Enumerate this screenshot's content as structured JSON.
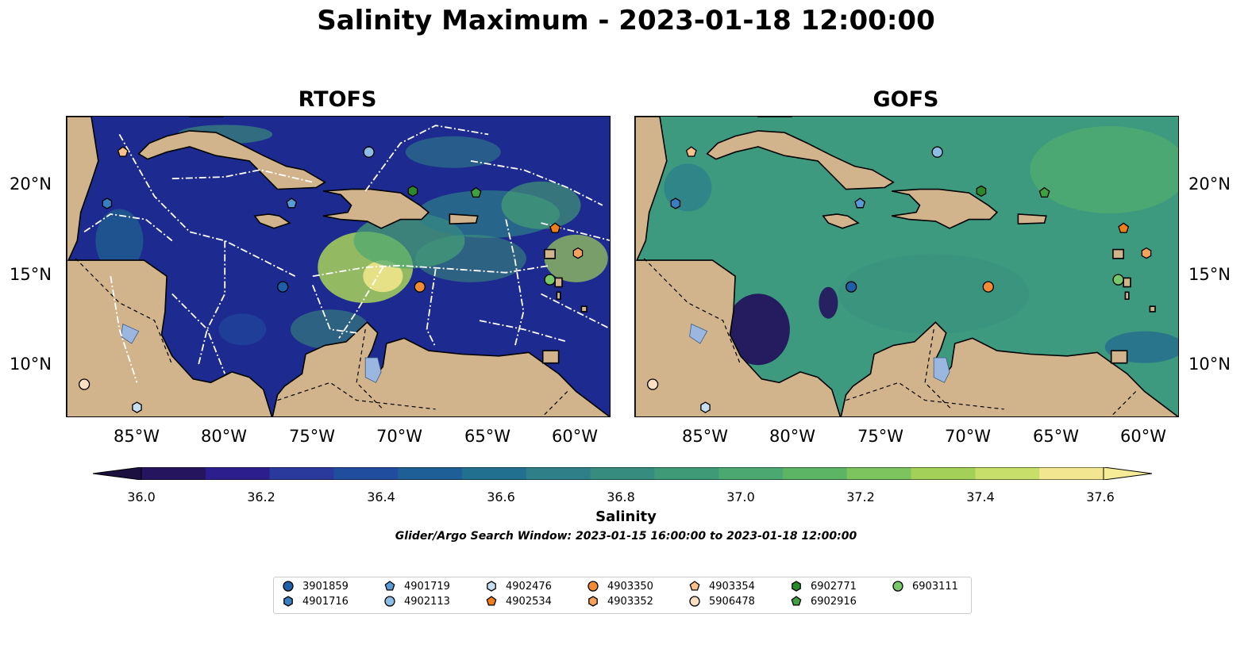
{
  "title": "Salinity Maximum - 2023-01-18 12:00:00",
  "panels": [
    {
      "title": "RTOFS",
      "id": "rtofs"
    },
    {
      "title": "GOFS",
      "id": "gofs"
    }
  ],
  "axes": {
    "x_ticks": [
      "85°W",
      "80°W",
      "75°W",
      "70°W",
      "65°W",
      "60°W"
    ],
    "y_ticks": [
      "20°N",
      "15°N",
      "10°N"
    ],
    "lon_range": [
      -89,
      -58
    ],
    "lat_range": [
      7,
      24
    ]
  },
  "colorbar": {
    "label": "Salinity",
    "ticks": [
      "36.0",
      "36.2",
      "36.4",
      "36.6",
      "36.8",
      "37.0",
      "37.2",
      "37.4",
      "37.6"
    ],
    "colors": [
      "#24155e",
      "#2c1e8c",
      "#2a3a9c",
      "#214d9e",
      "#1d5f96",
      "#22708f",
      "#2e7f88",
      "#378c80",
      "#3f9a78",
      "#4aa870",
      "#5cb565",
      "#7dc35e",
      "#a3d058",
      "#c8de6a",
      "#f2e690"
    ]
  },
  "search_window": "Glider/Argo Search Window: 2023-01-15 16:00:00 to 2023-01-18 12:00:00",
  "colors": {
    "land": "#d2b48c",
    "rtofs_ocean": "#1d2a8f",
    "gofs_ocean": "#3d9a7e",
    "lake": "#9bb7e0"
  },
  "floats": [
    {
      "id": "3901859",
      "marker": "circle",
      "color": "#1f5fa8",
      "lon": -76.7,
      "lat": 14.4
    },
    {
      "id": "4901716",
      "marker": "hexagon",
      "color": "#3a7ec2",
      "lon": -86.7,
      "lat": 19.1
    },
    {
      "id": "4901719",
      "marker": "pentagon",
      "color": "#5a9ad6",
      "lon": -76.2,
      "lat": 19.1
    },
    {
      "id": "4902113",
      "marker": "circle",
      "color": "#8dbde6",
      "lon": -71.8,
      "lat": 22.0
    },
    {
      "id": "4902476",
      "marker": "hexagon",
      "color": "#c6def0",
      "lon": -85.0,
      "lat": 7.6
    },
    {
      "id": "4902534",
      "marker": "pentagon",
      "color": "#f07f1a",
      "lon": -61.2,
      "lat": 17.7
    },
    {
      "id": "4903350",
      "marker": "circle",
      "color": "#f28c34",
      "lon": -68.9,
      "lat": 14.4
    },
    {
      "id": "4903352",
      "marker": "hexagon",
      "color": "#f6a15a",
      "lon": -59.9,
      "lat": 16.3
    },
    {
      "id": "4903354",
      "marker": "pentagon",
      "color": "#fac08a",
      "lon": -85.8,
      "lat": 22.0
    },
    {
      "id": "5906478",
      "marker": "circle",
      "color": "#fde0c4",
      "lon": -88.0,
      "lat": 8.9
    },
    {
      "id": "6902771",
      "marker": "hexagon",
      "color": "#2a8a2a",
      "lon": -69.3,
      "lat": 19.8
    },
    {
      "id": "6902916",
      "marker": "pentagon",
      "color": "#3fa13f",
      "lon": -65.7,
      "lat": 19.7
    },
    {
      "id": "6903111",
      "marker": "circle",
      "color": "#78c86b",
      "lon": -61.5,
      "lat": 14.8
    }
  ]
}
